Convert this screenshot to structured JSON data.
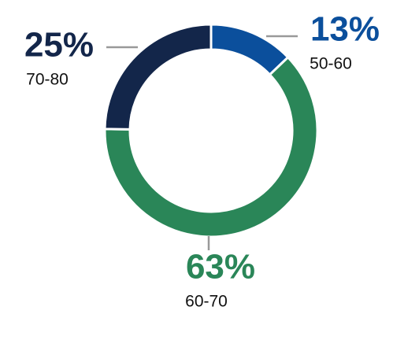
{
  "chart_data": {
    "type": "donut",
    "categories": [
      "50-60",
      "60-70",
      "70-80"
    ],
    "values": [
      13,
      63,
      25
    ],
    "value_labels": [
      "13%",
      "63%",
      "25%"
    ],
    "colors": [
      "#0b4f9c",
      "#2a8658",
      "#13264a"
    ]
  }
}
